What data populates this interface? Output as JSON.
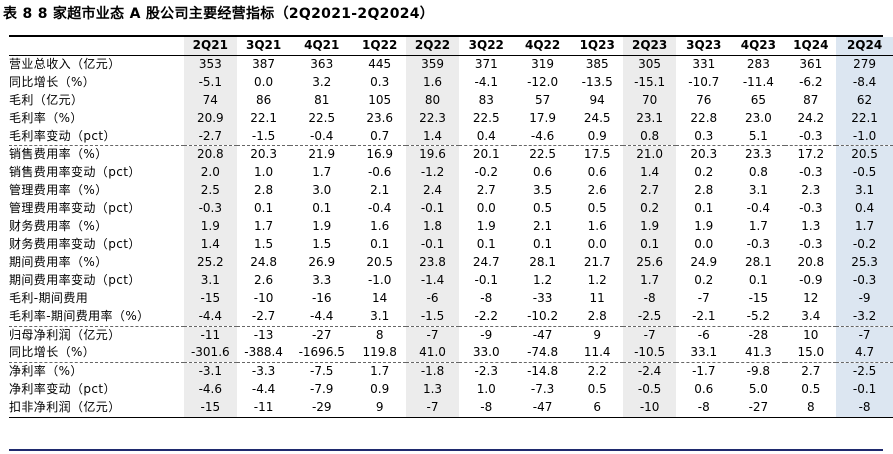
{
  "title": "表 8 8 家超市业态 A 股公司主要经营指标（2Q2021-2Q2024）",
  "columns": [
    "2Q21",
    "3Q21",
    "4Q21",
    "1Q22",
    "2Q22",
    "3Q22",
    "4Q22",
    "1Q23",
    "2Q23",
    "3Q23",
    "4Q23",
    "1Q24",
    "2Q24"
  ],
  "rows": [
    {
      "label": "营业总收入（亿元）",
      "values": [
        "353",
        "387",
        "363",
        "445",
        "359",
        "371",
        "319",
        "385",
        "305",
        "331",
        "283",
        "361",
        "279"
      ]
    },
    {
      "label": "同比增长（%）",
      "values": [
        "-5.1",
        "0.0",
        "3.2",
        "0.3",
        "1.6",
        "-4.1",
        "-12.0",
        "-13.5",
        "-15.1",
        "-10.7",
        "-11.4",
        "-6.2",
        "-8.4"
      ]
    },
    {
      "label": "毛利（亿元）",
      "values": [
        "74",
        "86",
        "81",
        "105",
        "80",
        "83",
        "57",
        "94",
        "70",
        "76",
        "65",
        "87",
        "62"
      ]
    },
    {
      "label": "毛利率（%）",
      "values": [
        "20.9",
        "22.1",
        "22.5",
        "23.6",
        "22.3",
        "22.5",
        "17.9",
        "24.5",
        "23.1",
        "22.8",
        "23.0",
        "24.2",
        "22.1"
      ]
    },
    {
      "label": "毛利率变动（pct）",
      "values": [
        "-2.7",
        "-1.5",
        "-0.4",
        "0.7",
        "1.4",
        "0.4",
        "-4.6",
        "0.9",
        "0.8",
        "0.3",
        "5.1",
        "-0.3",
        "-1.0"
      ]
    },
    {
      "label": "销售费用率（%）",
      "values": [
        "20.8",
        "20.3",
        "21.9",
        "16.9",
        "19.6",
        "20.1",
        "22.5",
        "17.5",
        "21.0",
        "20.3",
        "23.3",
        "17.2",
        "20.5"
      ]
    },
    {
      "label": "销售费用率变动（pct）",
      "values": [
        "2.0",
        "1.0",
        "1.7",
        "-0.6",
        "-1.2",
        "-0.2",
        "0.6",
        "0.6",
        "1.4",
        "0.2",
        "0.8",
        "-0.3",
        "-0.5"
      ]
    },
    {
      "label": "管理费用率（%）",
      "values": [
        "2.5",
        "2.8",
        "3.0",
        "2.1",
        "2.4",
        "2.7",
        "3.5",
        "2.6",
        "2.7",
        "2.8",
        "3.1",
        "2.3",
        "3.1"
      ]
    },
    {
      "label": "管理费用率变动（pct）",
      "values": [
        "-0.3",
        "0.1",
        "0.1",
        "-0.4",
        "-0.1",
        "0.0",
        "0.5",
        "0.5",
        "0.2",
        "0.1",
        "-0.4",
        "-0.3",
        "0.4"
      ]
    },
    {
      "label": "财务费用率（%）",
      "values": [
        "1.9",
        "1.7",
        "1.9",
        "1.6",
        "1.8",
        "1.9",
        "2.1",
        "1.6",
        "1.9",
        "1.9",
        "1.7",
        "1.3",
        "1.7"
      ]
    },
    {
      "label": "财务费用率变动（pct）",
      "values": [
        "1.4",
        "1.5",
        "1.5",
        "0.1",
        "-0.1",
        "0.1",
        "0.1",
        "0.0",
        "0.1",
        "0.0",
        "-0.3",
        "-0.3",
        "-0.2"
      ]
    },
    {
      "label": "期间费用率（%）",
      "values": [
        "25.2",
        "24.8",
        "26.9",
        "20.5",
        "23.8",
        "24.7",
        "28.1",
        "21.7",
        "25.6",
        "24.9",
        "28.1",
        "20.8",
        "25.3"
      ]
    },
    {
      "label": "期间费用率变动（pct）",
      "values": [
        "3.1",
        "2.6",
        "3.3",
        "-1.0",
        "-1.4",
        "-0.1",
        "1.2",
        "1.2",
        "1.7",
        "0.2",
        "0.1",
        "-0.9",
        "-0.3"
      ]
    },
    {
      "label": "毛利-期间费用",
      "values": [
        "-15",
        "-10",
        "-16",
        "14",
        "-6",
        "-8",
        "-33",
        "11",
        "-8",
        "-7",
        "-15",
        "12",
        "-9"
      ]
    },
    {
      "label": "毛利率-期间费用率（%）",
      "values": [
        "-4.4",
        "-2.7",
        "-4.4",
        "3.1",
        "-1.5",
        "-2.2",
        "-10.2",
        "2.8",
        "-2.5",
        "-2.1",
        "-5.2",
        "3.4",
        "-3.2"
      ]
    },
    {
      "label": "归母净利润（亿元）",
      "values": [
        "-11",
        "-13",
        "-27",
        "8",
        "-7",
        "-9",
        "-47",
        "9",
        "-7",
        "-6",
        "-28",
        "10",
        "-7"
      ]
    },
    {
      "label": "同比增长（%）",
      "values": [
        "-301.6",
        "-388.4",
        "-1696.5",
        "119.8",
        "41.0",
        "33.0",
        "-74.8",
        "11.4",
        "-10.5",
        "33.1",
        "41.3",
        "15.0",
        "4.7"
      ]
    },
    {
      "label": "净利率（%）",
      "values": [
        "-3.1",
        "-3.3",
        "-7.5",
        "1.7",
        "-1.8",
        "-2.3",
        "-14.8",
        "2.2",
        "-2.4",
        "-1.7",
        "-9.8",
        "2.7",
        "-2.5"
      ]
    },
    {
      "label": "净利率变动（pct）",
      "values": [
        "-4.6",
        "-4.4",
        "-7.9",
        "0.9",
        "1.3",
        "1.0",
        "-7.3",
        "0.5",
        "-0.5",
        "0.6",
        "5.0",
        "0.5",
        "-0.1"
      ]
    },
    {
      "label": "扣非净利润（亿元）",
      "values": [
        "-15",
        "-11",
        "-29",
        "9",
        "-7",
        "-8",
        "-47",
        "6",
        "-10",
        "-8",
        "-27",
        "8",
        "-8"
      ]
    }
  ]
}
